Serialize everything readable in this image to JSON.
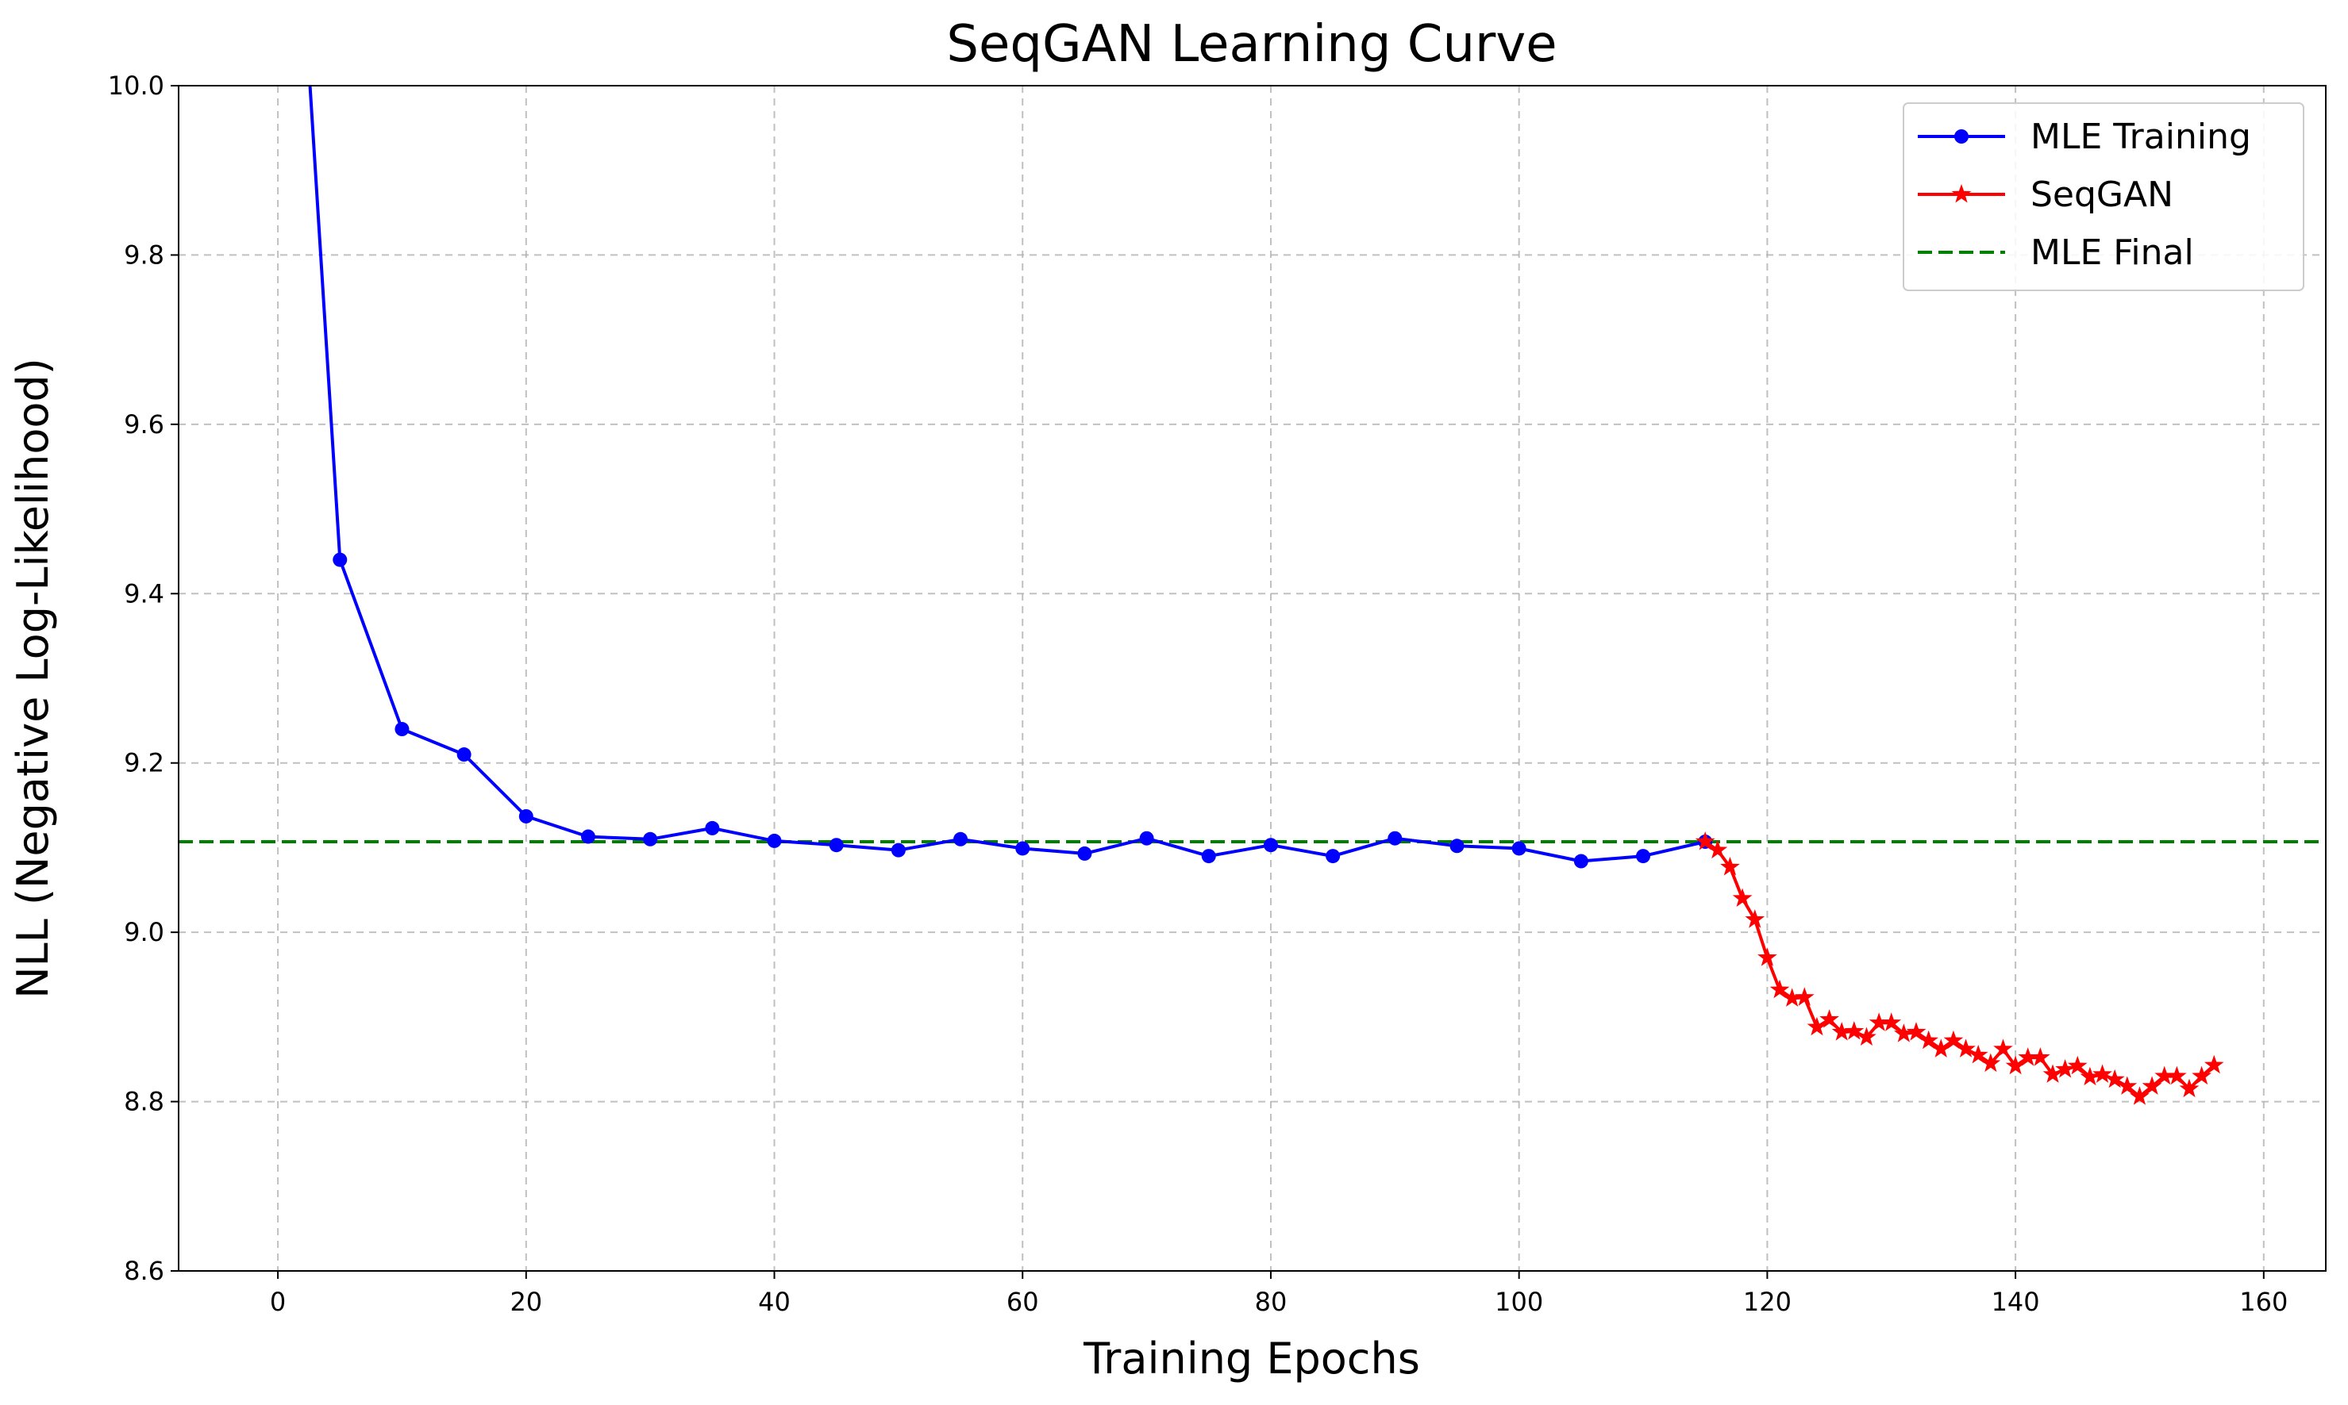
{
  "chart_data": {
    "type": "line",
    "title": "SeqGAN Learning Curve",
    "xlabel": "Training Epochs",
    "ylabel": "NLL (Negative Log-Likelihood)",
    "xlim": [
      -8,
      165
    ],
    "ylim": [
      8.6,
      10.0
    ],
    "xticks": [
      0,
      20,
      40,
      60,
      80,
      100,
      120,
      140,
      160
    ],
    "yticks": [
      8.6,
      8.8,
      9.0,
      9.2,
      9.4,
      9.6,
      9.8,
      10.0
    ],
    "ytick_labels": [
      "8.6",
      "8.8",
      "9.0",
      "9.2",
      "9.4",
      "9.6",
      "9.8",
      "10.0"
    ],
    "grid": true,
    "legend_position": "top-right",
    "series": [
      {
        "name": "MLE Training",
        "color": "#0000ff",
        "marker": "circle",
        "line_style": "solid",
        "x": [
          0,
          5,
          10,
          15,
          20,
          25,
          30,
          35,
          40,
          45,
          50,
          55,
          60,
          65,
          70,
          75,
          80,
          85,
          90,
          95,
          100,
          105,
          110,
          115
        ],
        "y": [
          10.6,
          9.44,
          9.24,
          9.21,
          9.137,
          9.113,
          9.11,
          9.123,
          9.108,
          9.103,
          9.097,
          9.11,
          9.099,
          9.093,
          9.111,
          9.09,
          9.103,
          9.09,
          9.111,
          9.102,
          9.099,
          9.084,
          9.09,
          9.107
        ]
      },
      {
        "name": "SeqGAN",
        "color": "#ff0000",
        "marker": "star",
        "line_style": "solid",
        "x": [
          115,
          116,
          117,
          118,
          119,
          120,
          121,
          122,
          123,
          124,
          125,
          126,
          127,
          128,
          129,
          130,
          131,
          132,
          133,
          134,
          135,
          136,
          137,
          138,
          139,
          140,
          141,
          142,
          143,
          144,
          145,
          146,
          147,
          148,
          149,
          150,
          151,
          152,
          153,
          154,
          155,
          156
        ],
        "y": [
          9.107,
          9.097,
          9.077,
          9.04,
          9.015,
          8.97,
          8.932,
          8.922,
          8.923,
          8.888,
          8.897,
          8.882,
          8.883,
          8.876,
          8.893,
          8.893,
          8.88,
          8.882,
          8.872,
          8.862,
          8.872,
          8.862,
          8.855,
          8.845,
          8.862,
          8.842,
          8.852,
          8.852,
          8.832,
          8.838,
          8.842,
          8.829,
          8.832,
          8.826,
          8.818,
          8.806,
          8.818,
          8.83,
          8.83,
          8.815,
          8.83,
          8.843
        ]
      },
      {
        "name": "MLE Final",
        "color": "#008000",
        "line_style": "dashed",
        "y_constant": 9.107
      }
    ]
  }
}
